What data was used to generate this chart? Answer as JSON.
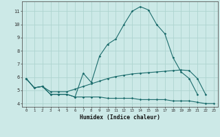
{
  "xlabel": "Humidex (Indice chaleur)",
  "bg_color": "#cce9e7",
  "grid_color": "#aed4d0",
  "line_color": "#1a6b6b",
  "x_values": [
    0,
    1,
    2,
    3,
    4,
    5,
    6,
    7,
    8,
    9,
    10,
    11,
    12,
    13,
    14,
    15,
    16,
    17,
    18,
    19,
    20,
    21,
    22,
    23
  ],
  "line1": [
    5.9,
    5.2,
    5.3,
    4.7,
    4.7,
    4.7,
    4.5,
    6.3,
    5.6,
    7.6,
    8.5,
    8.9,
    10.0,
    11.0,
    11.35,
    11.1,
    10.0,
    9.3,
    7.5,
    6.4,
    5.9,
    4.7,
    null,
    null
  ],
  "line3": [
    5.9,
    5.2,
    5.3,
    4.7,
    4.7,
    4.7,
    4.5,
    4.5,
    4.5,
    4.5,
    4.4,
    4.4,
    4.4,
    4.4,
    4.3,
    4.3,
    4.3,
    4.3,
    4.2,
    4.2,
    4.2,
    4.1,
    4.0,
    4.0
  ],
  "line4": [
    5.9,
    5.2,
    5.3,
    4.9,
    4.9,
    4.9,
    5.1,
    5.3,
    5.5,
    5.7,
    5.9,
    6.05,
    6.15,
    6.25,
    6.3,
    6.35,
    6.4,
    6.45,
    6.5,
    6.55,
    6.5,
    5.9,
    4.7,
    null
  ],
  "ylim": [
    3.75,
    11.75
  ],
  "xlim": [
    -0.5,
    23.5
  ],
  "yticks": [
    4,
    5,
    6,
    7,
    8,
    9,
    10,
    11
  ],
  "xticks": [
    0,
    1,
    2,
    3,
    4,
    5,
    6,
    7,
    8,
    9,
    10,
    11,
    12,
    13,
    14,
    15,
    16,
    17,
    18,
    19,
    20,
    21,
    22,
    23
  ]
}
